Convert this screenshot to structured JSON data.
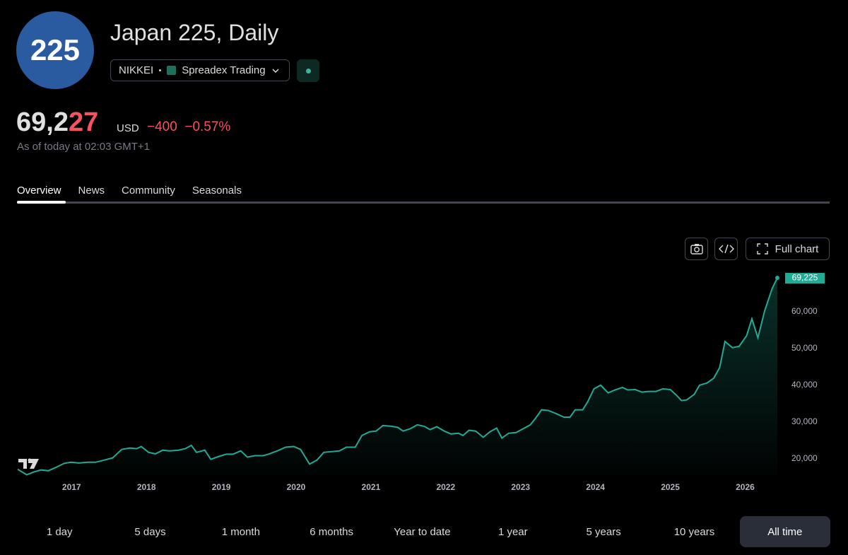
{
  "header": {
    "logo": "225",
    "title": "Japan 225, Daily",
    "exchange": "NIKKEI",
    "broker": "Spreadex Trading",
    "price_parts": [
      "69,2",
      "27"
    ],
    "currency": "USD",
    "change": "−400",
    "change_pct": "−0.57%",
    "as_of": "As of today at 02:03 GMT+1"
  },
  "tabs": [
    "Overview",
    "News",
    "Community",
    "Seasonals"
  ],
  "toolbar": {
    "full_chart": "Full chart"
  },
  "ranges": [
    "1 day",
    "5 days",
    "1 month",
    "6 months",
    "Year to date",
    "1 year",
    "5 years",
    "10 years",
    "All time"
  ],
  "selected_range": "All time",
  "chart_data": {
    "type": "line",
    "color": "#22ab94",
    "x": [
      2016.28,
      2016.4,
      2016.49,
      2016.59,
      2016.69,
      2016.78,
      2016.9,
      2016.99,
      2017.1,
      2017.22,
      2017.32,
      2017.44,
      2017.55,
      2017.67,
      2017.78,
      2017.87,
      2017.93,
      2018.03,
      2018.12,
      2018.22,
      2018.31,
      2018.43,
      2018.52,
      2018.6,
      2018.67,
      2018.78,
      2018.86,
      2018.97,
      2019.07,
      2019.16,
      2019.26,
      2019.35,
      2019.45,
      2019.56,
      2019.63,
      2019.75,
      2019.86,
      2019.97,
      2020.06,
      2020.18,
      2020.28,
      2020.37,
      2020.48,
      2020.58,
      2020.67,
      2020.79,
      2020.88,
      2020.98,
      2021.07,
      2021.16,
      2021.27,
      2021.36,
      2021.43,
      2021.52,
      2021.62,
      2021.71,
      2021.79,
      2021.88,
      2021.98,
      2022.07,
      2022.17,
      2022.23,
      2022.31,
      2022.4,
      2022.5,
      2022.59,
      2022.68,
      2022.75,
      2022.84,
      2022.94,
      2023.03,
      2023.13,
      2023.2,
      2023.28,
      2023.37,
      2023.47,
      2023.58,
      2023.66,
      2023.73,
      2023.83,
      2023.9,
      2023.98,
      2024.07,
      2024.17,
      2024.26,
      2024.36,
      2024.43,
      2024.53,
      2024.62,
      2024.71,
      2024.81,
      2024.9,
      2025.0,
      2025.09,
      2025.15,
      2025.22,
      2025.32,
      2025.39,
      2025.49,
      2025.58,
      2025.66,
      2025.73,
      2025.83,
      2025.92,
      2026.02,
      2026.09,
      2026.17,
      2026.26,
      2026.36,
      2026.43
    ],
    "values": [
      17100,
      15600,
      16300,
      16900,
      16700,
      17500,
      18700,
      19000,
      18800,
      19000,
      19000,
      19600,
      20200,
      22500,
      22900,
      22700,
      23300,
      21700,
      21300,
      22300,
      22100,
      22300,
      22700,
      23600,
      21700,
      22300,
      19800,
      20600,
      21200,
      21200,
      22100,
      20400,
      20800,
      20800,
      21200,
      22100,
      23100,
      23300,
      22500,
      18500,
      19600,
      21700,
      21900,
      22100,
      23100,
      23100,
      26300,
      27300,
      27500,
      29000,
      28800,
      28500,
      27500,
      28100,
      29200,
      28800,
      27900,
      28700,
      27500,
      26700,
      26900,
      26300,
      27700,
      27500,
      25800,
      27300,
      28300,
      25600,
      26900,
      27100,
      28100,
      29200,
      31000,
      33300,
      33100,
      32300,
      31300,
      31300,
      33300,
      33300,
      35600,
      39000,
      40000,
      37900,
      38700,
      39400,
      38700,
      38800,
      38100,
      38300,
      38300,
      39000,
      38800,
      37100,
      35800,
      36000,
      37500,
      40000,
      40600,
      41900,
      44800,
      51900,
      50200,
      50600,
      53500,
      58100,
      52900,
      60200,
      66300,
      69225
    ],
    "value_labels": [
      null,
      null,
      null,
      null,
      null,
      null,
      null,
      null,
      null,
      null,
      null,
      null,
      null,
      null,
      null,
      null,
      null,
      null,
      null,
      null,
      null,
      null,
      null,
      null,
      null,
      null,
      null,
      null,
      null,
      null,
      null,
      null,
      null,
      null,
      null,
      null,
      null,
      null,
      null,
      null,
      null,
      null,
      null,
      null,
      null,
      null,
      null,
      null,
      null,
      null,
      null,
      null,
      null,
      null,
      null,
      null,
      null,
      null,
      null,
      null,
      null,
      null,
      null,
      null,
      null,
      null,
      null,
      null,
      null,
      null,
      null,
      null,
      null,
      null,
      null,
      null,
      null,
      null,
      null,
      null,
      null,
      null,
      null,
      null,
      null,
      null,
      null,
      null,
      null,
      null,
      null,
      null,
      null,
      null,
      null,
      null,
      null,
      null,
      null,
      null,
      null,
      null,
      null,
      null,
      null,
      null,
      null,
      null,
      null,
      "69,225"
    ],
    "xlim": [
      2016.28,
      2026.43
    ],
    "xticks": [
      2017,
      2018,
      2019,
      2020,
      2021,
      2022,
      2023,
      2024,
      2025,
      2026
    ],
    "ylim": [
      15500,
      70000
    ],
    "yticks": [
      {
        "value": 20000,
        "label": "20,000"
      },
      {
        "value": 30000,
        "label": "30,000"
      },
      {
        "value": 40000,
        "label": "40,000"
      },
      {
        "value": 50000,
        "label": "50,000"
      },
      {
        "value": 60000,
        "label": "60,000"
      }
    ]
  }
}
